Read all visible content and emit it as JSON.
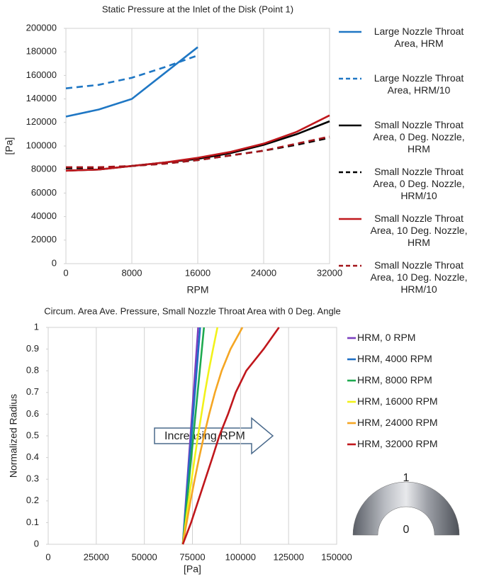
{
  "chart_data": [
    {
      "type": "line",
      "title": "Static Pressure at the Inlet of the Disk (Point 1)",
      "x_label": "RPM",
      "y_label": "[Pa]",
      "x": [
        0,
        4000,
        8000,
        12000,
        16000,
        20000,
        24000,
        28000,
        32000
      ],
      "xlim": [
        0,
        32000
      ],
      "xticks": [
        0,
        8000,
        16000,
        24000,
        32000
      ],
      "ylim": [
        0,
        200000
      ],
      "yticks": [
        0,
        20000,
        40000,
        60000,
        80000,
        100000,
        120000,
        140000,
        160000,
        180000,
        200000
      ],
      "grid": "x",
      "legend": "right",
      "series": [
        {
          "name": "Large Nozzle Throat Area, HRM",
          "color": "#1f77c4",
          "dashed": false,
          "values": [
            125000,
            131000,
            140000,
            162000,
            184000,
            null,
            null,
            null,
            null
          ]
        },
        {
          "name": "Large Nozzle Throat Area, HRM/10",
          "color": "#1f77c4",
          "dashed": true,
          "values": [
            149000,
            152000,
            158000,
            167000,
            177000,
            null,
            null,
            null,
            null
          ]
        },
        {
          "name": "Small Nozzle Throat Area, 0 Deg. Nozzle, HRM",
          "color": "#000000",
          "dashed": false,
          "values": [
            79000,
            80000,
            83000,
            86000,
            89000,
            94000,
            101000,
            110000,
            121000
          ]
        },
        {
          "name": "Small Nozzle Throat Area, 0 Deg. Nozzle, HRM/10",
          "color": "#000000",
          "dashed": true,
          "values": [
            81000,
            81500,
            83000,
            85000,
            88000,
            92000,
            96000,
            101000,
            107000
          ]
        },
        {
          "name": "Small Nozzle Throat Area, 10 Deg. Nozzle, HRM",
          "color": "#c0171c",
          "dashed": false,
          "values": [
            79000,
            80000,
            83000,
            86000,
            90000,
            95000,
            102000,
            112000,
            126000
          ]
        },
        {
          "name": "Small Nozzle Throat Area, 10 Deg. Nozzle, HRM/10",
          "color": "#a3141a",
          "dashed": true,
          "values": [
            82000,
            82000,
            83000,
            85000,
            88000,
            92000,
            96000,
            102000,
            108000
          ]
        }
      ]
    },
    {
      "type": "line",
      "title": "Circum. Area Ave. Pressure, Small Nozzle Throat Area with 0 Deg. Angle",
      "x_label": "[Pa]",
      "y_label": "Normalized Radius",
      "xlim": [
        0,
        150000
      ],
      "xticks": [
        0,
        25000,
        50000,
        75000,
        100000,
        125000,
        150000
      ],
      "ylim": [
        0,
        1
      ],
      "yticks": [
        0,
        0.1,
        0.2,
        0.3,
        0.4,
        0.5,
        0.6,
        0.7,
        0.8,
        0.9,
        1
      ],
      "grid": "x",
      "legend": "right",
      "annotations": [
        "Increasing RPM",
        "1",
        "0"
      ],
      "series": [
        {
          "name": "HRM, 0 RPM",
          "color": "#7b3fbf",
          "dashed": false,
          "x": [
            70000,
            70800,
            71600,
            72400,
            73200,
            74000,
            74800,
            75600,
            76400,
            77200,
            78000
          ],
          "values": [
            0,
            0.1,
            0.2,
            0.3,
            0.4,
            0.5,
            0.6,
            0.7,
            0.8,
            0.9,
            1
          ]
        },
        {
          "name": "HRM, 4000 RPM",
          "color": "#1f6fc4",
          "dashed": false,
          "x": [
            70000,
            70900,
            71800,
            72700,
            73600,
            74500,
            75400,
            76300,
            77200,
            78100,
            79000
          ],
          "values": [
            0,
            0.1,
            0.2,
            0.3,
            0.4,
            0.5,
            0.6,
            0.7,
            0.8,
            0.9,
            1
          ]
        },
        {
          "name": "HRM, 8000 RPM",
          "color": "#1faa50",
          "dashed": false,
          "x": [
            70000,
            71100,
            72200,
            73300,
            74400,
            75500,
            76600,
            77700,
            78800,
            79900,
            81000
          ],
          "values": [
            0,
            0.1,
            0.2,
            0.3,
            0.4,
            0.5,
            0.6,
            0.7,
            0.8,
            0.9,
            1
          ]
        },
        {
          "name": "HRM, 16000 RPM",
          "color": "#f2f21a",
          "dashed": false,
          "x": [
            70000,
            71500,
            73000,
            74600,
            76200,
            77900,
            79700,
            81500,
            83500,
            85700,
            88000
          ],
          "values": [
            0,
            0.1,
            0.2,
            0.3,
            0.4,
            0.5,
            0.6,
            0.7,
            0.8,
            0.9,
            1
          ]
        },
        {
          "name": "HRM, 24000 RPM",
          "color": "#f5a623",
          "dashed": false,
          "x": [
            70000,
            72000,
            74000,
            76200,
            78500,
            81000,
            83700,
            86700,
            90200,
            94800,
            101000
          ],
          "values": [
            0,
            0.1,
            0.2,
            0.3,
            0.4,
            0.5,
            0.6,
            0.7,
            0.8,
            0.9,
            1
          ]
        },
        {
          "name": "HRM, 32000 RPM",
          "color": "#c0171c",
          "dashed": false,
          "x": [
            70000,
            74300,
            78000,
            81700,
            85400,
            89000,
            93500,
            97500,
            103000,
            112000,
            120000
          ],
          "values": [
            0,
            0.1,
            0.2,
            0.3,
            0.4,
            0.5,
            0.6,
            0.7,
            0.8,
            0.9,
            1
          ]
        }
      ]
    }
  ]
}
